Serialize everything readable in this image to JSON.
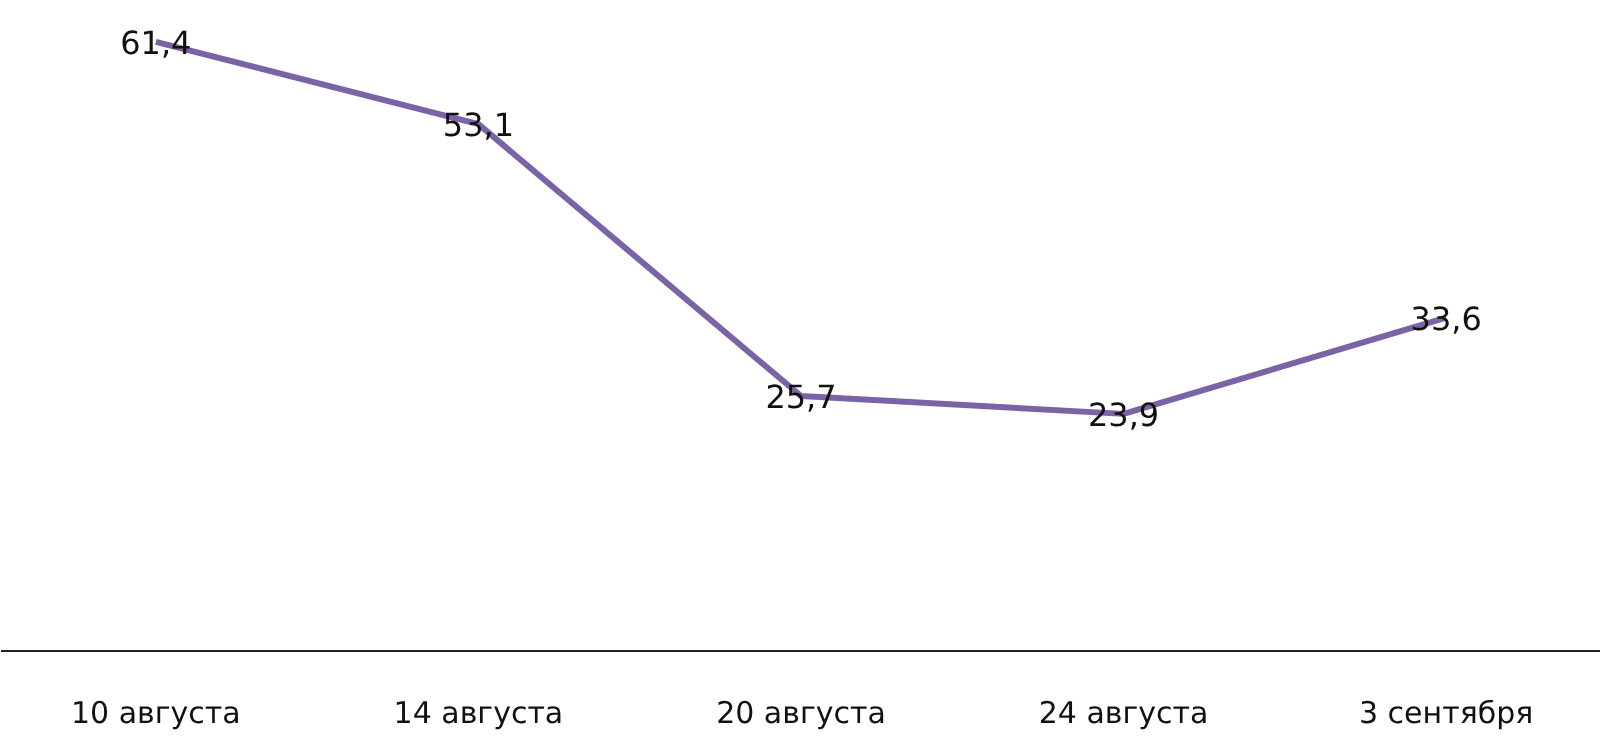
{
  "chart_data": {
    "type": "line",
    "categories": [
      "10 августа",
      "14 августа",
      "20 августа",
      "24 августа",
      "3 сентября"
    ],
    "series": [
      {
        "color": "#7a64a6",
        "values": [
          61.4,
          53.1,
          25.7,
          23.9,
          33.6
        ],
        "value_labels": [
          "61,4",
          "53,1",
          "25,7",
          "23,9",
          "33,6"
        ]
      }
    ],
    "grid": false,
    "tick_labels": "x",
    "line_style": "solid"
  }
}
